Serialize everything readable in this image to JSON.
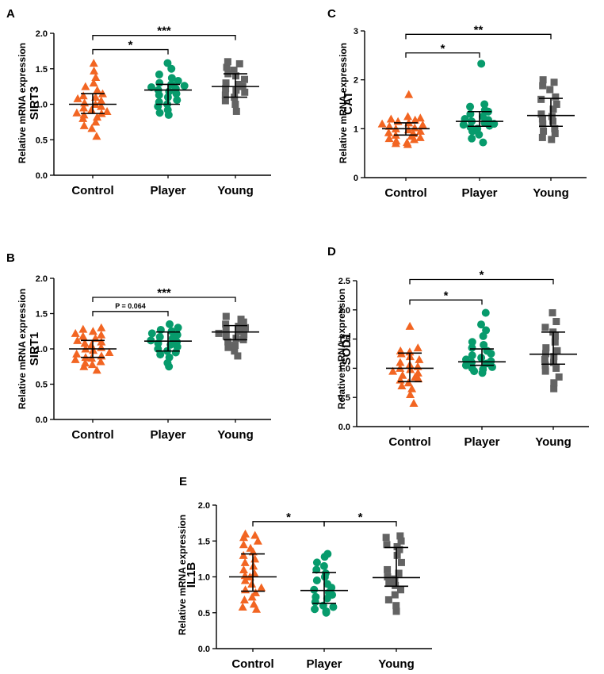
{
  "colors": {
    "Control": "#f26522",
    "Player": "#079b6c",
    "Young": "#636363"
  },
  "chart_data": [
    {
      "type": "scatter",
      "panel": "A",
      "gene": "SIRT3",
      "ylabel": "Relative mRNA expression",
      "ylim": [
        0,
        2.0
      ],
      "yticks": [
        "0.0",
        "0.5",
        "1.0",
        "1.5",
        "2.0"
      ],
      "categories": [
        "Control",
        "Player",
        "Young"
      ],
      "series": [
        {
          "name": "Control",
          "marker": "triangle",
          "mean": 1.0,
          "err_low": 0.87,
          "err_high": 1.15,
          "values": [
            0.55,
            0.66,
            0.7,
            0.75,
            0.8,
            0.82,
            0.85,
            0.87,
            0.88,
            0.9,
            0.92,
            0.95,
            0.97,
            1.0,
            1.02,
            1.05,
            1.08,
            1.1,
            1.12,
            1.15,
            1.2,
            1.25,
            1.3,
            1.38,
            1.47,
            1.58
          ]
        },
        {
          "name": "Player",
          "marker": "circle",
          "mean": 1.2,
          "err_low": 1.0,
          "err_high": 1.28,
          "values": [
            0.85,
            0.88,
            0.92,
            0.97,
            1.0,
            1.03,
            1.06,
            1.1,
            1.13,
            1.15,
            1.18,
            1.2,
            1.22,
            1.24,
            1.26,
            1.28,
            1.3,
            1.33,
            1.37,
            1.42,
            1.5,
            1.58
          ]
        },
        {
          "name": "Young",
          "marker": "square",
          "mean": 1.25,
          "err_low": 1.1,
          "err_high": 1.43,
          "values": [
            0.9,
            1.0,
            1.05,
            1.1,
            1.13,
            1.17,
            1.2,
            1.22,
            1.25,
            1.28,
            1.3,
            1.35,
            1.4,
            1.43,
            1.48,
            1.52,
            1.57,
            1.6
          ]
        }
      ],
      "significance": [
        {
          "from": "Control",
          "to": "Player",
          "label": "*",
          "level": 1.77
        },
        {
          "from": "Control",
          "to": "Young",
          "label": "***",
          "level": 1.97
        }
      ]
    },
    {
      "type": "scatter",
      "panel": "B",
      "gene": "SIRT1",
      "ylabel": "Relative mRNA expression",
      "ylim": [
        0,
        2.0
      ],
      "yticks": [
        "0.0",
        "0.5",
        "1.0",
        "1.5",
        "2.0"
      ],
      "categories": [
        "Control",
        "Player",
        "Young"
      ],
      "series": [
        {
          "name": "Control",
          "marker": "triangle",
          "mean": 1.0,
          "err_low": 0.88,
          "err_high": 1.12,
          "values": [
            0.7,
            0.75,
            0.78,
            0.8,
            0.82,
            0.85,
            0.87,
            0.88,
            0.9,
            0.93,
            0.95,
            0.98,
            1.0,
            1.02,
            1.05,
            1.08,
            1.1,
            1.12,
            1.15,
            1.18,
            1.2,
            1.22,
            1.25,
            1.28,
            1.3
          ]
        },
        {
          "name": "Player",
          "marker": "circle",
          "mean": 1.11,
          "err_low": 0.97,
          "err_high": 1.24,
          "values": [
            0.75,
            0.8,
            0.88,
            0.92,
            0.95,
            0.97,
            1.0,
            1.03,
            1.06,
            1.08,
            1.1,
            1.12,
            1.15,
            1.17,
            1.2,
            1.22,
            1.25,
            1.27,
            1.3,
            1.35
          ]
        },
        {
          "name": "Young",
          "marker": "square",
          "mean": 1.24,
          "err_low": 1.13,
          "err_high": 1.33,
          "values": [
            0.9,
            0.97,
            1.02,
            1.05,
            1.1,
            1.13,
            1.15,
            1.18,
            1.2,
            1.22,
            1.25,
            1.27,
            1.3,
            1.32,
            1.35,
            1.38,
            1.42,
            1.46
          ]
        }
      ],
      "significance": [
        {
          "from": "Control",
          "to": "Player",
          "label": "P = 0.064",
          "level": 1.53
        },
        {
          "from": "Control",
          "to": "Young",
          "label": "***",
          "level": 1.73
        }
      ]
    },
    {
      "type": "scatter",
      "panel": "C",
      "gene": "CAT",
      "ylabel": "Relative mRNA expression",
      "ylim": [
        0,
        3
      ],
      "yticks": [
        "0",
        "1",
        "2",
        "3"
      ],
      "categories": [
        "Control",
        "Player",
        "Young"
      ],
      "series": [
        {
          "name": "Control",
          "marker": "triangle",
          "mean": 1.0,
          "err_low": 0.87,
          "err_high": 1.12,
          "values": [
            0.68,
            0.7,
            0.72,
            0.75,
            0.78,
            0.8,
            0.82,
            0.85,
            0.87,
            0.9,
            0.92,
            0.95,
            0.98,
            1.0,
            1.02,
            1.05,
            1.08,
            1.1,
            1.12,
            1.15,
            1.18,
            1.2,
            1.22,
            1.25,
            1.7
          ]
        },
        {
          "name": "Player",
          "marker": "circle",
          "mean": 1.15,
          "err_low": 1.05,
          "err_high": 1.35,
          "values": [
            0.72,
            0.8,
            0.88,
            0.95,
            1.0,
            1.03,
            1.06,
            1.08,
            1.1,
            1.12,
            1.15,
            1.18,
            1.2,
            1.25,
            1.3,
            1.35,
            1.38,
            1.45,
            1.5,
            2.33
          ]
        },
        {
          "name": "Young",
          "marker": "square",
          "mean": 1.27,
          "err_low": 1.05,
          "err_high": 1.62,
          "values": [
            0.78,
            0.82,
            0.9,
            0.95,
            1.0,
            1.1,
            1.15,
            1.2,
            1.25,
            1.3,
            1.4,
            1.5,
            1.6,
            1.65,
            1.8,
            1.88,
            1.95,
            2.0
          ]
        }
      ],
      "significance": [
        {
          "from": "Control",
          "to": "Player",
          "label": "*",
          "level": 2.55
        },
        {
          "from": "Control",
          "to": "Young",
          "label": "**",
          "level": 2.93
        }
      ]
    },
    {
      "type": "scatter",
      "panel": "D",
      "gene": "SOD1",
      "ylabel": "Relative mRNA expression",
      "ylim": [
        0,
        2.5
      ],
      "yticks": [
        "0.0",
        "0.5",
        "1.0",
        "1.5",
        "2.0",
        "2.5"
      ],
      "categories": [
        "Control",
        "Player",
        "Young"
      ],
      "series": [
        {
          "name": "Control",
          "marker": "triangle",
          "mean": 1.0,
          "err_low": 0.77,
          "err_high": 1.26,
          "values": [
            0.4,
            0.55,
            0.65,
            0.7,
            0.75,
            0.8,
            0.82,
            0.85,
            0.88,
            0.92,
            0.95,
            0.98,
            1.0,
            1.03,
            1.06,
            1.1,
            1.15,
            1.2,
            1.25,
            1.28,
            1.3,
            1.35,
            1.72
          ]
        },
        {
          "name": "Player",
          "marker": "circle",
          "mean": 1.11,
          "err_low": 1.05,
          "err_high": 1.33,
          "values": [
            0.92,
            0.95,
            0.98,
            1.0,
            1.02,
            1.05,
            1.08,
            1.1,
            1.12,
            1.15,
            1.18,
            1.22,
            1.25,
            1.3,
            1.35,
            1.4,
            1.45,
            1.55,
            1.65,
            1.75,
            1.95
          ]
        },
        {
          "name": "Young",
          "marker": "square",
          "mean": 1.24,
          "err_low": 1.07,
          "err_high": 1.62,
          "values": [
            0.65,
            0.75,
            0.85,
            0.95,
            1.0,
            1.05,
            1.1,
            1.15,
            1.2,
            1.25,
            1.3,
            1.35,
            1.45,
            1.55,
            1.62,
            1.7,
            1.8,
            1.95
          ]
        }
      ],
      "significance": [
        {
          "from": "Control",
          "to": "Player",
          "label": "*",
          "level": 2.17
        },
        {
          "from": "Control",
          "to": "Young",
          "label": "*",
          "level": 2.52
        }
      ]
    },
    {
      "type": "scatter",
      "panel": "E",
      "gene": "IL1B",
      "ylabel": "Relative mRNA expression",
      "ylim": [
        0,
        2.0
      ],
      "yticks": [
        "0.0",
        "0.5",
        "1.0",
        "1.5",
        "2.0"
      ],
      "categories": [
        "Control",
        "Player",
        "Young"
      ],
      "series": [
        {
          "name": "Control",
          "marker": "triangle",
          "mean": 1.0,
          "err_low": 0.8,
          "err_high": 1.32,
          "values": [
            0.55,
            0.58,
            0.62,
            0.68,
            0.72,
            0.78,
            0.82,
            0.85,
            0.9,
            0.95,
            1.0,
            1.02,
            1.05,
            1.1,
            1.15,
            1.2,
            1.25,
            1.3,
            1.35,
            1.4,
            1.45,
            1.5,
            1.55,
            1.58,
            1.6
          ]
        },
        {
          "name": "Player",
          "marker": "circle",
          "mean": 0.81,
          "err_low": 0.63,
          "err_high": 1.06,
          "values": [
            0.5,
            0.52,
            0.55,
            0.58,
            0.6,
            0.65,
            0.7,
            0.72,
            0.75,
            0.78,
            0.82,
            0.85,
            0.9,
            0.95,
            1.0,
            1.05,
            1.1,
            1.15,
            1.2,
            1.28,
            1.32
          ]
        },
        {
          "name": "Young",
          "marker": "square",
          "mean": 0.99,
          "err_low": 0.87,
          "err_high": 1.41,
          "values": [
            0.52,
            0.6,
            0.68,
            0.75,
            0.82,
            0.88,
            0.92,
            0.97,
            1.0,
            1.05,
            1.1,
            1.2,
            1.3,
            1.38,
            1.42,
            1.45,
            1.5,
            1.55,
            1.57
          ]
        }
      ],
      "significance": [
        {
          "from": "Control",
          "to": "Player",
          "label": "*",
          "level": 1.77
        },
        {
          "from": "Player",
          "to": "Young",
          "label": "*",
          "level": 1.77
        }
      ]
    }
  ]
}
